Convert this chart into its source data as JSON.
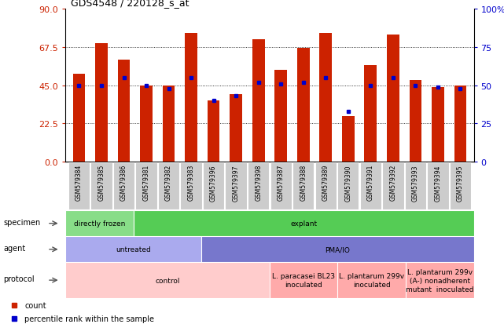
{
  "title": "GDS4548 / 220128_s_at",
  "samples": [
    "GSM579384",
    "GSM579385",
    "GSM579386",
    "GSM579381",
    "GSM579382",
    "GSM579383",
    "GSM579396",
    "GSM579397",
    "GSM579398",
    "GSM579387",
    "GSM579388",
    "GSM579389",
    "GSM579390",
    "GSM579391",
    "GSM579392",
    "GSM579393",
    "GSM579394",
    "GSM579395"
  ],
  "counts": [
    52,
    70,
    60,
    45,
    45,
    76,
    36,
    40,
    72,
    54,
    67,
    76,
    27,
    57,
    75,
    48,
    44,
    45
  ],
  "percentiles": [
    50,
    50,
    55,
    50,
    48,
    55,
    40,
    43,
    52,
    51,
    52,
    55,
    33,
    50,
    55,
    50,
    49,
    48
  ],
  "ylim_left": [
    0,
    90
  ],
  "ylim_right": [
    0,
    100
  ],
  "yticks_left": [
    0,
    22.5,
    45,
    67.5,
    90
  ],
  "yticks_right": [
    0,
    25,
    50,
    75,
    100
  ],
  "bar_color": "#cc2200",
  "percentile_color": "#0000cc",
  "specimen_labels": [
    {
      "text": "directly frozen",
      "start": 0,
      "end": 3,
      "color": "#88dd88"
    },
    {
      "text": "explant",
      "start": 3,
      "end": 18,
      "color": "#55cc55"
    }
  ],
  "agent_labels": [
    {
      "text": "untreated",
      "start": 0,
      "end": 6,
      "color": "#aaaaee"
    },
    {
      "text": "PMA/IO",
      "start": 6,
      "end": 18,
      "color": "#7777cc"
    }
  ],
  "protocol_labels": [
    {
      "text": "control",
      "start": 0,
      "end": 9,
      "color": "#ffcccc"
    },
    {
      "text": "L. paracasei BL23\ninoculated",
      "start": 9,
      "end": 12,
      "color": "#ffaaaa"
    },
    {
      "text": "L. plantarum 299v\ninoculated",
      "start": 12,
      "end": 15,
      "color": "#ffaaaa"
    },
    {
      "text": "L. plantarum 299v\n(A-) nonadherent\nmutant  inoculated",
      "start": 15,
      "end": 18,
      "color": "#ffaaaa"
    }
  ],
  "row_labels": [
    "specimen",
    "agent",
    "protocol"
  ],
  "legend_count_color": "#cc2200",
  "legend_percentile_color": "#0000cc"
}
